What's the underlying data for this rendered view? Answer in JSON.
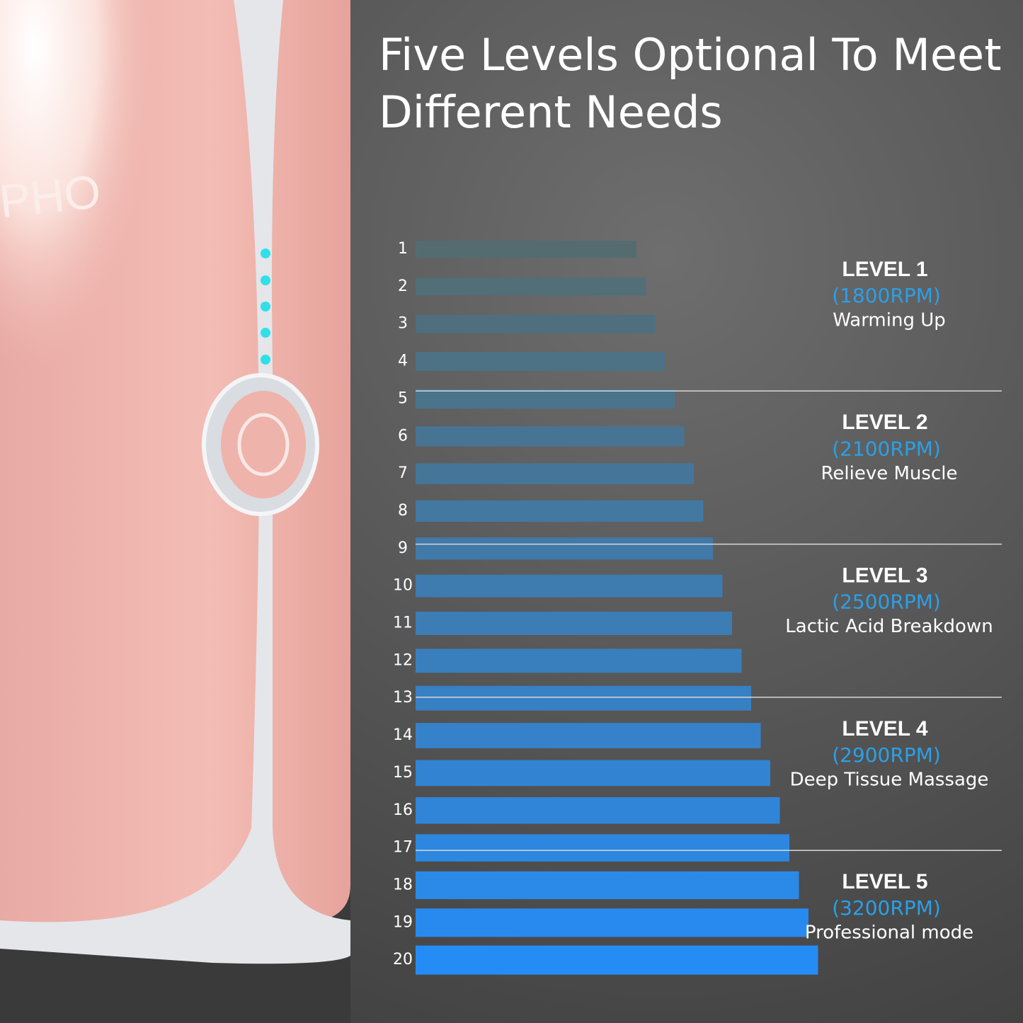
{
  "title_lines": [
    "Five Levels Optional To Meet",
    "Different Needs"
  ],
  "product": {
    "logo_text": "PHO"
  },
  "bar_labels": [
    "1",
    "2",
    "3",
    "4",
    "5",
    "6",
    "7",
    "8",
    "9",
    "10",
    "11",
    "12",
    "13",
    "14",
    "15",
    "16",
    "17",
    "18",
    "19",
    "20"
  ],
  "levels": [
    {
      "label": "LEVEL 1",
      "rpm": "(1800RPM)",
      "description": "Warming Up"
    },
    {
      "label": "LEVEL 2",
      "rpm": "(2100RPM)",
      "description": "Relieve Muscle"
    },
    {
      "label": "LEVEL 3",
      "rpm": "(2500RPM)",
      "description": "Lactic Acid Breakdown"
    },
    {
      "label": "LEVEL 4",
      "rpm": "(2900RPM)",
      "description": "Deep Tissue Massage"
    },
    {
      "label": "LEVEL 5",
      "rpm": "(3200RPM)",
      "description": "Professional mode"
    }
  ]
}
